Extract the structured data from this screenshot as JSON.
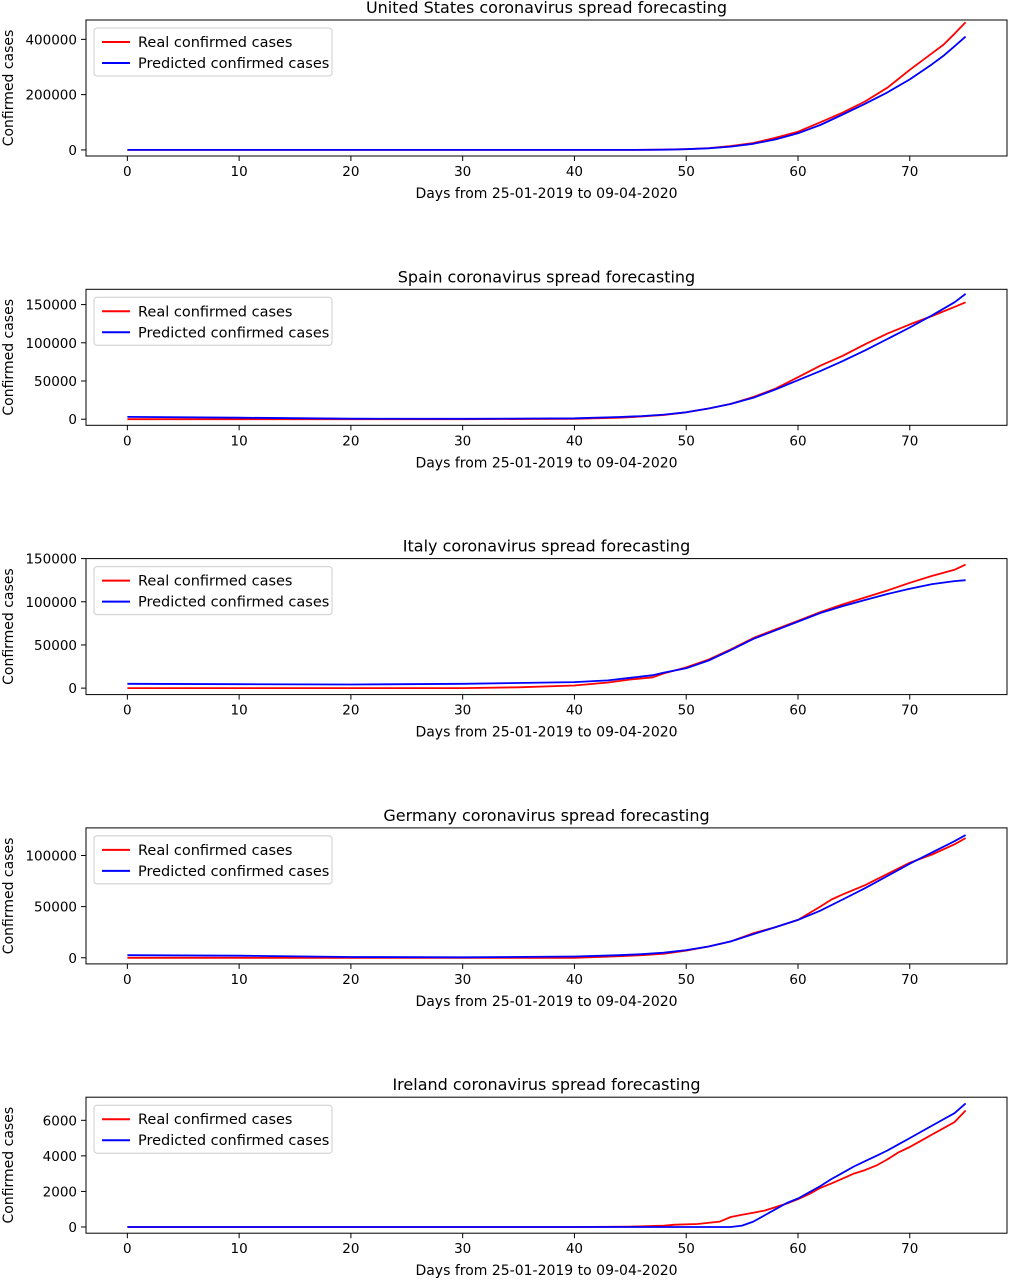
{
  "colors": {
    "real": "#ff0000",
    "predicted": "#0000ff",
    "axes": "#000000",
    "legend_border": "#cccccc"
  },
  "chart_data": [
    {
      "type": "line",
      "title": "United States coronavirus spread forecasting",
      "xlabel": "Days from 25-01-2019 to 09-04-2020",
      "ylabel": "Confirmed cases",
      "xlim": [
        -3.7,
        78.7
      ],
      "ylim": [
        -22000,
        470000
      ],
      "xticks": [
        0,
        10,
        20,
        30,
        40,
        50,
        60,
        70
      ],
      "yticks": [
        0,
        200000,
        400000
      ],
      "legend": "upper-left",
      "series": [
        {
          "name": "Real confirmed cases",
          "color": "#ff0000",
          "x": [
            0,
            40,
            45,
            48,
            50,
            52,
            54,
            56,
            58,
            60,
            62,
            64,
            66,
            68,
            70,
            72,
            73,
            74,
            75
          ],
          "y": [
            0,
            0,
            200,
            1000,
            3000,
            6500,
            14000,
            25000,
            44000,
            66000,
            100000,
            135000,
            175000,
            225000,
            290000,
            350000,
            380000,
            420000,
            462000
          ]
        },
        {
          "name": "Predicted confirmed cases",
          "color": "#0000ff",
          "x": [
            0,
            40,
            45,
            48,
            50,
            52,
            54,
            56,
            58,
            60,
            62,
            64,
            66,
            68,
            70,
            72,
            73,
            74,
            75
          ],
          "y": [
            0,
            0,
            200,
            900,
            2500,
            6000,
            12000,
            22000,
            38000,
            60000,
            90000,
            128000,
            167000,
            208000,
            255000,
            310000,
            340000,
            375000,
            410000
          ]
        }
      ]
    },
    {
      "type": "line",
      "title": "Spain coronavirus spread forecasting",
      "xlabel": "Days from 25-01-2019 to 09-04-2020",
      "ylabel": "Confirmed cases",
      "xlim": [
        -3.7,
        78.7
      ],
      "ylim": [
        -8000,
        170000
      ],
      "xticks": [
        0,
        10,
        20,
        30,
        40,
        50,
        60,
        70
      ],
      "yticks": [
        0,
        50000,
        100000,
        150000
      ],
      "legend": "upper-left",
      "series": [
        {
          "name": "Real confirmed cases",
          "color": "#ff0000",
          "x": [
            0,
            30,
            40,
            44,
            46,
            48,
            50,
            52,
            54,
            56,
            58,
            60,
            62,
            64,
            66,
            68,
            70,
            72,
            74,
            75
          ],
          "y": [
            0,
            0,
            500,
            2000,
            3500,
            5500,
            9000,
            14000,
            20000,
            29000,
            40000,
            55000,
            70000,
            83000,
            98000,
            112000,
            124000,
            135000,
            147000,
            153000
          ]
        },
        {
          "name": "Predicted confirmed cases",
          "color": "#0000ff",
          "x": [
            0,
            10,
            20,
            30,
            40,
            44,
            46,
            48,
            50,
            52,
            54,
            56,
            58,
            60,
            62,
            64,
            66,
            68,
            70,
            72,
            74,
            75
          ],
          "y": [
            3000,
            2000,
            700,
            500,
            1200,
            2800,
            4000,
            6000,
            9000,
            14000,
            20000,
            28000,
            39000,
            51000,
            63000,
            76000,
            90000,
            105000,
            120000,
            136000,
            153000,
            164000
          ]
        }
      ]
    },
    {
      "type": "line",
      "title": "Italy coronavirus spread forecasting",
      "xlabel": "Days from 25-01-2019 to 09-04-2020",
      "ylabel": "Confirmed cases",
      "xlim": [
        -3.7,
        78.7
      ],
      "ylim": [
        -7500,
        150000
      ],
      "xticks": [
        0,
        10,
        20,
        30,
        40,
        50,
        60,
        70
      ],
      "yticks": [
        0,
        50000,
        100000,
        150000
      ],
      "legend": "upper-left",
      "series": [
        {
          "name": "Real confirmed cases",
          "color": "#ff0000",
          "x": [
            0,
            30,
            35,
            40,
            43,
            45,
            47,
            48,
            50,
            52,
            54,
            56,
            58,
            60,
            62,
            64,
            66,
            68,
            70,
            72,
            74,
            75
          ],
          "y": [
            0,
            0,
            1000,
            3000,
            6500,
            10000,
            12500,
            17000,
            24000,
            33000,
            45000,
            58000,
            68000,
            78000,
            88000,
            97000,
            105000,
            113000,
            122000,
            130000,
            137000,
            143000
          ]
        },
        {
          "name": "Predicted confirmed cases",
          "color": "#0000ff",
          "x": [
            0,
            10,
            20,
            30,
            40,
            43,
            45,
            47,
            48,
            50,
            52,
            54,
            56,
            58,
            60,
            62,
            64,
            66,
            68,
            70,
            72,
            74,
            75
          ],
          "y": [
            5000,
            4500,
            4200,
            5000,
            7000,
            9000,
            12000,
            15000,
            18000,
            23000,
            32000,
            44000,
            57000,
            67000,
            77000,
            87000,
            95000,
            102000,
            109000,
            115000,
            120500,
            124000,
            125000
          ]
        }
      ]
    },
    {
      "type": "line",
      "title": "Germany coronavirus spread forecasting",
      "xlabel": "Days from 25-01-2019 to 09-04-2020",
      "ylabel": "Confirmed cases",
      "xlim": [
        -3.7,
        78.7
      ],
      "ylim": [
        -6000,
        127000
      ],
      "xticks": [
        0,
        10,
        20,
        30,
        40,
        50,
        60,
        70
      ],
      "yticks": [
        0,
        50000,
        100000
      ],
      "legend": "upper-left",
      "series": [
        {
          "name": "Real confirmed cases",
          "color": "#ff0000",
          "x": [
            0,
            40,
            44,
            46,
            48,
            50,
            52,
            54,
            55,
            56,
            58,
            60,
            62,
            63,
            64,
            66,
            68,
            70,
            72,
            74,
            75
          ],
          "y": [
            0,
            0,
            1500,
            2500,
            4000,
            7000,
            11000,
            16000,
            20000,
            24000,
            30000,
            37000,
            50000,
            57000,
            62000,
            71000,
            82000,
            93000,
            101000,
            111000,
            117000
          ]
        },
        {
          "name": "Predicted confirmed cases",
          "color": "#0000ff",
          "x": [
            0,
            10,
            20,
            30,
            40,
            44,
            46,
            48,
            50,
            52,
            54,
            56,
            58,
            60,
            62,
            64,
            66,
            68,
            70,
            72,
            74,
            75
          ],
          "y": [
            2500,
            2000,
            700,
            500,
            1200,
            2500,
            3500,
            5000,
            7500,
            11000,
            16000,
            23000,
            30000,
            37000,
            46000,
            57000,
            68000,
            80000,
            92000,
            103000,
            114000,
            120000
          ]
        }
      ]
    },
    {
      "type": "line",
      "title": "Ireland coronavirus spread forecasting",
      "xlabel": "Days from 25-01-2019 to 09-04-2020",
      "ylabel": "Confirmed cases",
      "xlim": [
        -3.7,
        78.7
      ],
      "ylim": [
        -350,
        7300
      ],
      "xticks": [
        0,
        10,
        20,
        30,
        40,
        50,
        60,
        70
      ],
      "yticks": [
        0,
        2000,
        4000,
        6000
      ],
      "legend": "upper-left",
      "series": [
        {
          "name": "Real confirmed cases",
          "color": "#ff0000",
          "x": [
            0,
            40,
            45,
            48,
            49,
            51,
            53,
            54,
            55,
            56,
            57,
            58,
            59,
            60,
            61,
            62,
            63,
            64,
            65,
            66,
            67,
            68,
            69,
            70,
            71,
            72,
            73,
            74,
            75
          ],
          "y": [
            0,
            0,
            20,
            70,
            130,
            170,
            300,
            560,
            690,
            800,
            920,
            1120,
            1320,
            1560,
            1850,
            2200,
            2450,
            2720,
            3000,
            3200,
            3450,
            3800,
            4200,
            4500,
            4850,
            5200,
            5550,
            5900,
            6550
          ]
        },
        {
          "name": "Predicted confirmed cases",
          "color": "#0000ff",
          "x": [
            0,
            40,
            54,
            55,
            56,
            57,
            58,
            59,
            60,
            61,
            62,
            63,
            64,
            65,
            66,
            67,
            68,
            69,
            70,
            71,
            72,
            73,
            74,
            75
          ],
          "y": [
            0,
            0,
            0,
            80,
            300,
            650,
            1000,
            1350,
            1600,
            1950,
            2300,
            2700,
            3050,
            3400,
            3700,
            4000,
            4300,
            4650,
            5000,
            5350,
            5700,
            6050,
            6400,
            6950
          ]
        }
      ]
    }
  ]
}
